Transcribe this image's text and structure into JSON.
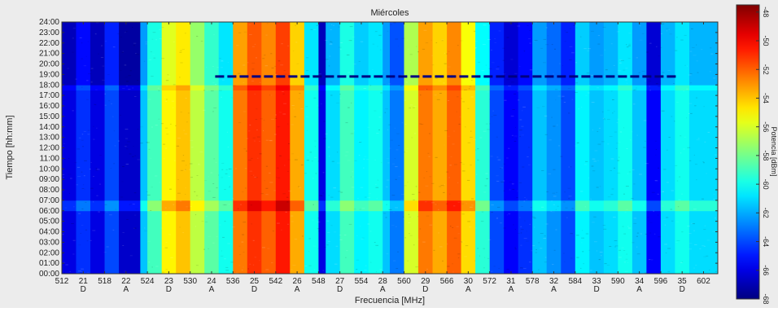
{
  "chart_data": {
    "type": "heatmap",
    "title": "Miércoles",
    "xlabel": "Frecuencia [MHz]",
    "ylabel": "Tiempo [hh:mm]",
    "colorbar_label": "Potencia [dBm]",
    "xlim": [
      512,
      604
    ],
    "ylim": [
      0,
      24
    ],
    "clim": [
      -68,
      -47.5
    ],
    "colormap": "jet",
    "x_ticks": [
      {
        "value": 512,
        "label": "512"
      },
      {
        "value": 515,
        "label": "21",
        "sub": "D"
      },
      {
        "value": 518,
        "label": "518"
      },
      {
        "value": 521,
        "label": "22",
        "sub": "A"
      },
      {
        "value": 524,
        "label": "524"
      },
      {
        "value": 527,
        "label": "23",
        "sub": "D"
      },
      {
        "value": 530,
        "label": "530"
      },
      {
        "value": 533,
        "label": "24",
        "sub": "A"
      },
      {
        "value": 536,
        "label": "536"
      },
      {
        "value": 539,
        "label": "25",
        "sub": "D"
      },
      {
        "value": 542,
        "label": "542"
      },
      {
        "value": 545,
        "label": "26",
        "sub": "A"
      },
      {
        "value": 548,
        "label": "548"
      },
      {
        "value": 551,
        "label": "27",
        "sub": "D"
      },
      {
        "value": 554,
        "label": "554"
      },
      {
        "value": 557,
        "label": "28",
        "sub": "A"
      },
      {
        "value": 560,
        "label": "560"
      },
      {
        "value": 563,
        "label": "29",
        "sub": "D"
      },
      {
        "value": 566,
        "label": "566"
      },
      {
        "value": 569,
        "label": "30",
        "sub": "A"
      },
      {
        "value": 572,
        "label": "572"
      },
      {
        "value": 575,
        "label": "31",
        "sub": "A"
      },
      {
        "value": 578,
        "label": "578"
      },
      {
        "value": 581,
        "label": "32",
        "sub": "A"
      },
      {
        "value": 584,
        "label": "584"
      },
      {
        "value": 587,
        "label": "33",
        "sub": "D"
      },
      {
        "value": 590,
        "label": "590"
      },
      {
        "value": 593,
        "label": "34",
        "sub": "A"
      },
      {
        "value": 596,
        "label": "596"
      },
      {
        "value": 599,
        "label": "35",
        "sub": "D"
      },
      {
        "value": 602,
        "label": "602"
      }
    ],
    "y_tick_labels": [
      "00:00",
      "01:00",
      "02:00",
      "03:00",
      "04:00",
      "05:00",
      "06:00",
      "07:00",
      "08:00",
      "09:00",
      "10:00",
      "11:00",
      "12:00",
      "13:00",
      "14:00",
      "15:00",
      "16:00",
      "17:00",
      "18:00",
      "19:00",
      "20:00",
      "21:00",
      "22:00",
      "23:00",
      "24:00"
    ],
    "colorbar_ticks": [
      -48,
      -50,
      -52,
      -54,
      -56,
      -58,
      -60,
      -62,
      -64,
      -66,
      -68
    ],
    "frequency_bands": [
      {
        "x0": 512,
        "x1": 514,
        "dbm": -66.0
      },
      {
        "x0": 514,
        "x1": 516,
        "dbm": -64.5
      },
      {
        "x0": 516,
        "x1": 518,
        "dbm": -66.0
      },
      {
        "x0": 518,
        "x1": 520,
        "dbm": -64.0
      },
      {
        "x0": 520,
        "x1": 523,
        "dbm": -66.5
      },
      {
        "x0": 523,
        "x1": 524,
        "dbm": -61.5
      },
      {
        "x0": 524,
        "x1": 526,
        "dbm": -59.0
      },
      {
        "x0": 526,
        "x1": 528,
        "dbm": -55.0
      },
      {
        "x0": 528,
        "x1": 530,
        "dbm": -54.0
      },
      {
        "x0": 530,
        "x1": 532,
        "dbm": -56.5
      },
      {
        "x0": 532,
        "x1": 534,
        "dbm": -58.5
      },
      {
        "x0": 534,
        "x1": 536,
        "dbm": -60.0
      },
      {
        "x0": 536,
        "x1": 538,
        "dbm": -52.5
      },
      {
        "x0": 538,
        "x1": 540,
        "dbm": -51.0
      },
      {
        "x0": 540,
        "x1": 542,
        "dbm": -52.0
      },
      {
        "x0": 542,
        "x1": 544,
        "dbm": -50.5
      },
      {
        "x0": 544,
        "x1": 546,
        "dbm": -53.5
      },
      {
        "x0": 546,
        "x1": 548,
        "dbm": -60.0
      },
      {
        "x0": 548,
        "x1": 549,
        "dbm": -66.0
      },
      {
        "x0": 549,
        "x1": 551,
        "dbm": -61.0
      },
      {
        "x0": 551,
        "x1": 553,
        "dbm": -59.0
      },
      {
        "x0": 553,
        "x1": 555,
        "dbm": -60.5
      },
      {
        "x0": 555,
        "x1": 557,
        "dbm": -60.0
      },
      {
        "x0": 557,
        "x1": 558,
        "dbm": -61.5
      },
      {
        "x0": 558,
        "x1": 560,
        "dbm": -63.0
      },
      {
        "x0": 560,
        "x1": 562,
        "dbm": -56.0
      },
      {
        "x0": 562,
        "x1": 564,
        "dbm": -52.5
      },
      {
        "x0": 564,
        "x1": 566,
        "dbm": -53.5
      },
      {
        "x0": 566,
        "x1": 568,
        "dbm": -52.0
      },
      {
        "x0": 568,
        "x1": 570,
        "dbm": -54.5
      },
      {
        "x0": 570,
        "x1": 572,
        "dbm": -59.5
      },
      {
        "x0": 572,
        "x1": 574,
        "dbm": -64.0
      },
      {
        "x0": 574,
        "x1": 576,
        "dbm": -65.5
      },
      {
        "x0": 576,
        "x1": 578,
        "dbm": -64.5
      },
      {
        "x0": 578,
        "x1": 580,
        "dbm": -61.5
      },
      {
        "x0": 580,
        "x1": 582,
        "dbm": -62.5
      },
      {
        "x0": 582,
        "x1": 584,
        "dbm": -64.0
      },
      {
        "x0": 584,
        "x1": 586,
        "dbm": -60.5
      },
      {
        "x0": 586,
        "x1": 588,
        "dbm": -61.5
      },
      {
        "x0": 588,
        "x1": 590,
        "dbm": -61.0
      },
      {
        "x0": 590,
        "x1": 592,
        "dbm": -60.0
      },
      {
        "x0": 592,
        "x1": 594,
        "dbm": -61.5
      },
      {
        "x0": 594,
        "x1": 596,
        "dbm": -65.5
      },
      {
        "x0": 596,
        "x1": 598,
        "dbm": -61.0
      },
      {
        "x0": 598,
        "x1": 600,
        "dbm": -60.0
      },
      {
        "x0": 600,
        "x1": 604,
        "dbm": -61.0
      }
    ],
    "time_segments": [
      {
        "y0": 0,
        "y1": 6,
        "offset_db": 0
      },
      {
        "y0": 6,
        "y1": 7,
        "offset_db": 1.5
      },
      {
        "y0": 7,
        "y1": 17.5,
        "offset_db": 0
      },
      {
        "y0": 17.5,
        "y1": 18,
        "offset_db": 0.6
      },
      {
        "y0": 18,
        "y1": 24,
        "offset_db": -0.8
      }
    ],
    "dropout_line": {
      "time": 18.8,
      "dbm": -68
    }
  }
}
